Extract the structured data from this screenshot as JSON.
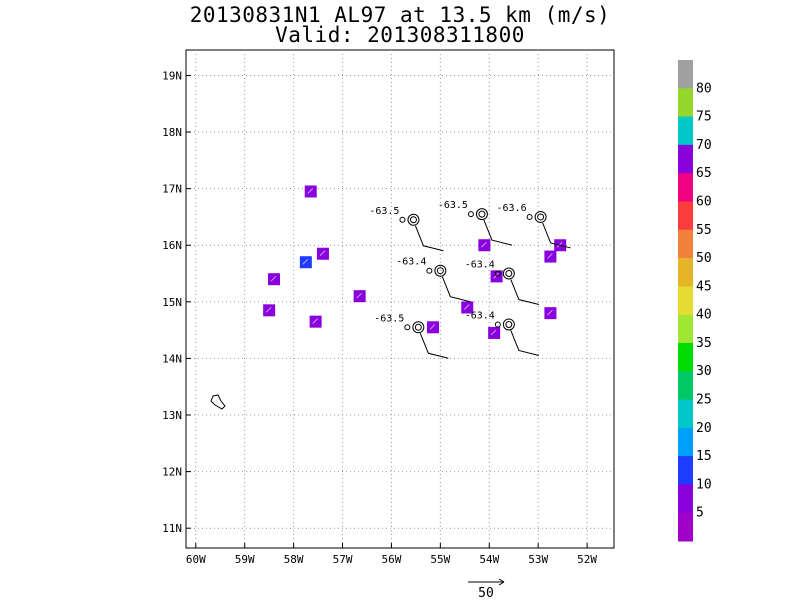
{
  "header": {
    "title": "20130831N1 AL97 at 13.5 km (m/s)",
    "valid": "Valid: 201308311800"
  },
  "map": {
    "lat_labels": [
      "19N",
      "18N",
      "17N",
      "16N",
      "15N",
      "14N",
      "13N",
      "12N",
      "11N"
    ],
    "lon_labels": [
      "60W",
      "59W",
      "58W",
      "57W",
      "56W",
      "55W",
      "54W",
      "53W",
      "52W"
    ],
    "lat_values": [
      19,
      18,
      17,
      16,
      15,
      14,
      13,
      12,
      11
    ],
    "lon_values": [
      -60,
      -59,
      -58,
      -57,
      -56,
      -55,
      -54,
      -53,
      -52
    ],
    "lon_range": [
      -60.2,
      -51.45
    ],
    "lat_range": [
      10.65,
      19.45
    ],
    "grid": "dotted",
    "island": "Barbados outline near 13.2N 59.6W"
  },
  "drop_markers": [
    {
      "label": "-63.5",
      "lat": 16.45,
      "lon": -55.55
    },
    {
      "label": "-63.5",
      "lat": 16.55,
      "lon": -54.15
    },
    {
      "label": "-63.6",
      "lat": 16.5,
      "lon": -52.95
    },
    {
      "label": "-63.4",
      "lat": 15.55,
      "lon": -55.0
    },
    {
      "label": "-63.4",
      "lat": 15.5,
      "lon": -53.6
    },
    {
      "label": "-63.5",
      "lat": 14.55,
      "lon": -55.45
    },
    {
      "label": "-63.4",
      "lat": 14.6,
      "lon": -53.6
    }
  ],
  "wind_patches": [
    {
      "lat": 16.95,
      "lon": -57.65,
      "color": "#8a00dc"
    },
    {
      "lat": 15.85,
      "lon": -57.4,
      "color": "#8a00dc"
    },
    {
      "lat": 15.7,
      "lon": -57.75,
      "color": "#1e3cff"
    },
    {
      "lat": 15.4,
      "lon": -58.4,
      "color": "#8a00dc"
    },
    {
      "lat": 14.85,
      "lon": -58.5,
      "color": "#8a00dc"
    },
    {
      "lat": 14.65,
      "lon": -57.55,
      "color": "#8a00dc"
    },
    {
      "lat": 15.1,
      "lon": -56.65,
      "color": "#8a00dc"
    },
    {
      "lat": 14.55,
      "lon": -55.15,
      "color": "#8a00dc"
    },
    {
      "lat": 14.9,
      "lon": -54.45,
      "color": "#8a00dc"
    },
    {
      "lat": 16.0,
      "lon": -54.1,
      "color": "#8a00dc"
    },
    {
      "lat": 15.45,
      "lon": -53.85,
      "color": "#8a00dc"
    },
    {
      "lat": 14.45,
      "lon": -53.9,
      "color": "#8a00dc"
    },
    {
      "lat": 15.8,
      "lon": -52.75,
      "color": "#8a00dc"
    },
    {
      "lat": 14.8,
      "lon": -52.75,
      "color": "#8a00dc"
    },
    {
      "lat": 16.0,
      "lon": -52.55,
      "color": "#8a00dc"
    }
  ],
  "colorbar": {
    "labels": [
      "80",
      "75",
      "70",
      "65",
      "60",
      "55",
      "50",
      "45",
      "40",
      "35",
      "30",
      "25",
      "20",
      "15",
      "10",
      "5"
    ],
    "colors": [
      "#a0a0a0",
      "#96d72d",
      "#00c8c8",
      "#8a00dc",
      "#f00082",
      "#fa3c3c",
      "#f0823c",
      "#e6b428",
      "#e6dc32",
      "#a0e632",
      "#00dc00",
      "#00c864",
      "#00c8c8",
      "#00a0ff",
      "#1e3cff",
      "#8a00dc",
      "#a000c8"
    ]
  },
  "wind_scale": {
    "label": "50"
  }
}
